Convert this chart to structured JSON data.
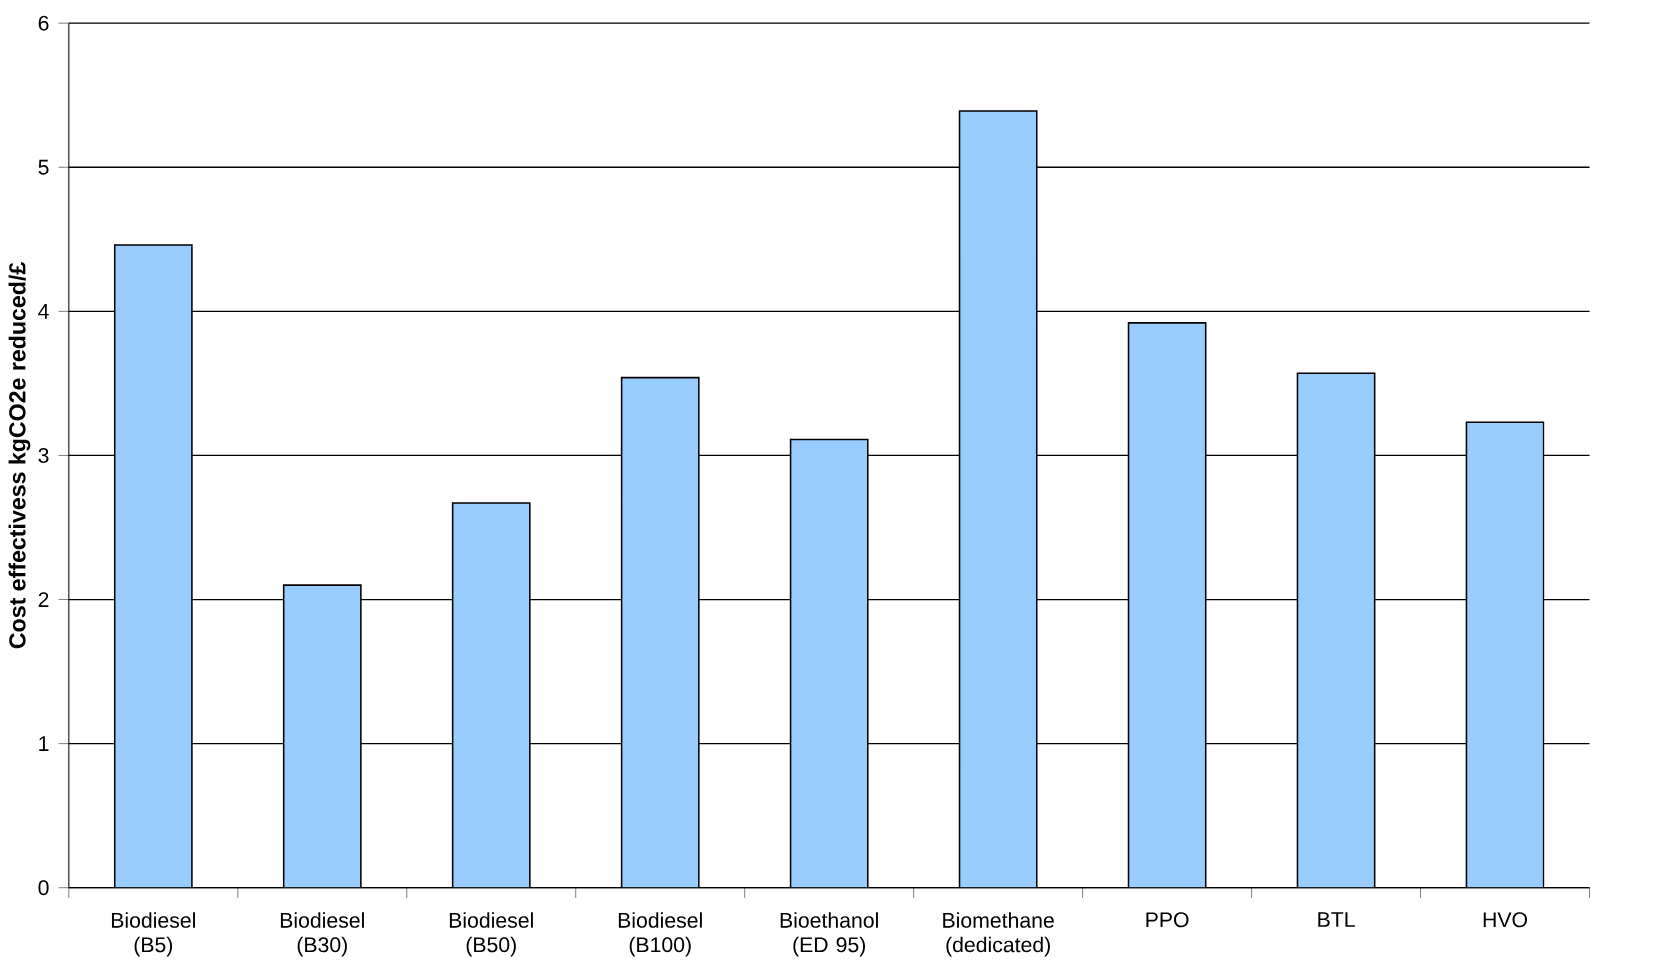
{
  "chart_data": {
    "type": "bar",
    "ylabel": "Cost effectivess kgCO2e reduced/£",
    "categories": [
      "Biodiesel (B5)",
      "Biodiesel (B30)",
      "Biodiesel (B50)",
      "Biodiesel (B100)",
      "Bioethanol (ED 95)",
      "Biomethane (dedicated)",
      "PPO",
      "BTL",
      "HVO"
    ],
    "values": [
      4.46,
      2.1,
      2.67,
      3.54,
      3.11,
      5.39,
      3.92,
      3.57,
      3.23
    ],
    "color": "#99ccff",
    "ylim": [
      0,
      6
    ],
    "yticks": [
      0,
      1,
      2,
      3,
      4,
      5,
      6
    ],
    "grid": "y"
  }
}
